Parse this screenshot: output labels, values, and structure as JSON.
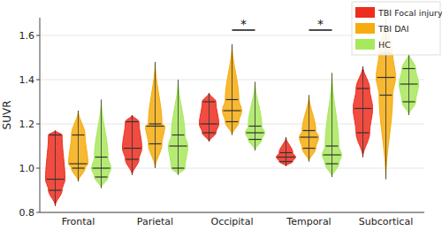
{
  "chart_data": {
    "type": "violin",
    "y_label": "SUVR",
    "categories": [
      "Frontal",
      "Parietal",
      "Occipital",
      "Temporal",
      "Subcortical"
    ],
    "ylim": [
      0.8,
      1.68
    ],
    "yticks": [
      0.8,
      {
        "value": 1.0,
        "label": "1.0"
      },
      1.2,
      1.4,
      1.6
    ],
    "grid": true,
    "legend": "top-right",
    "series": [
      {
        "name": "TBI Focal injury",
        "color": "#ee2d1f",
        "min": [
          0.83,
          0.97,
          1.12,
          1.01,
          1.05
        ],
        "q1": [
          0.9,
          1.04,
          1.16,
          1.03,
          1.16
        ],
        "values": [
          0.95,
          1.09,
          1.2,
          1.05,
          1.27
        ],
        "q3": [
          1.15,
          1.21,
          1.3,
          1.07,
          1.36
        ],
        "max": [
          1.17,
          1.24,
          1.34,
          1.14,
          1.46
        ]
      },
      {
        "name": "TBI DAI",
        "color": "#f6ac0e",
        "min": [
          0.94,
          1.0,
          1.15,
          1.03,
          0.95
        ],
        "q1": [
          1.0,
          1.11,
          1.21,
          1.09,
          1.33
        ],
        "values": [
          1.02,
          1.19,
          1.26,
          1.14,
          1.41
        ],
        "q3": [
          1.15,
          1.2,
          1.31,
          1.17,
          1.52
        ],
        "max": [
          1.26,
          1.48,
          1.56,
          1.33,
          1.68
        ]
      },
      {
        "name": "HC",
        "color": "#a8e85c",
        "min": [
          0.91,
          0.97,
          1.08,
          0.96,
          1.24
        ],
        "q1": [
          0.96,
          1.0,
          1.13,
          1.02,
          1.3
        ],
        "values": [
          1.0,
          1.1,
          1.16,
          1.06,
          1.38
        ],
        "q3": [
          1.05,
          1.15,
          1.19,
          1.1,
          1.45
        ],
        "max": [
          1.31,
          1.4,
          1.39,
          1.43,
          1.52
        ]
      }
    ],
    "annotations": [
      {
        "text": "*",
        "category": "Occipital",
        "series": [
          "TBI DAI",
          "HC"
        ]
      },
      {
        "text": "*",
        "category": "Temporal",
        "series": [
          "TBI DAI",
          "HC"
        ]
      }
    ]
  }
}
